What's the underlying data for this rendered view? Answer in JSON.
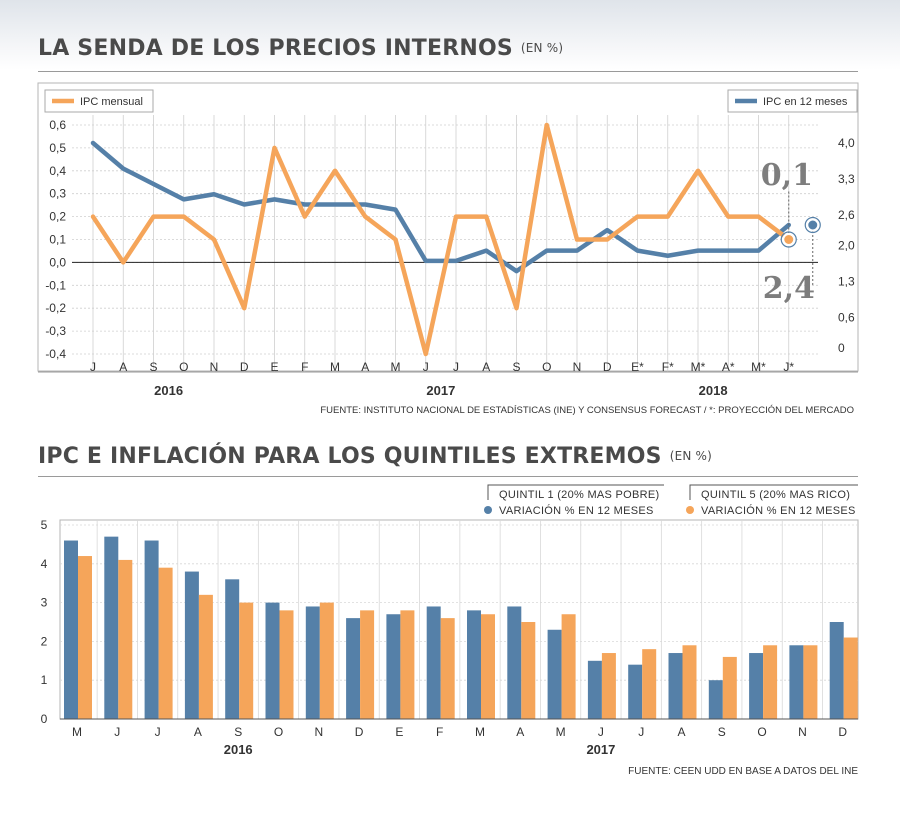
{
  "chart1": {
    "title": "LA SENDA DE LOS PRECIOS INTERNOS",
    "unit": "(EN %)",
    "source": "FUENTE: INSTITUTO NACIONAL DE ESTADÍSTICAS (INE) Y CONSENSUS FORECAST / *: PROYECCIÓN DEL MERCADO",
    "callout_top": "0,1",
    "callout_bottom": "2,4"
  },
  "chart2": {
    "title": "IPC E INFLACIÓN PARA LOS QUINTILES EXTREMOS",
    "unit": "(EN %)",
    "source": "FUENTE: CEEN UDD EN BASE A DATOS DEL INE",
    "legend1_line1": "QUINTIL 1 (20% MAS POBRE)",
    "legend1_line2": "VARIACIÓN % EN 12 MESES",
    "legend2_line1": "QUINTIL 5 (20% MAS RICO)",
    "legend2_line2": "VARIACIÓN % EN 12 MESES"
  },
  "chart_data": [
    {
      "type": "line",
      "title": "LA SENDA DE LOS PRECIOS INTERNOS",
      "categories": [
        "J",
        "A",
        "S",
        "O",
        "N",
        "D",
        "E",
        "F",
        "M",
        "A",
        "M",
        "J",
        "J",
        "A",
        "S",
        "O",
        "N",
        "D",
        "E*",
        "F*",
        "M*",
        "A*",
        "M*",
        "J*"
      ],
      "year_labels": [
        {
          "label": "2016",
          "at_index": 2.5
        },
        {
          "label": "2017",
          "at_index": 11.5
        },
        {
          "label": "2018",
          "at_index": 20.5
        }
      ],
      "y_left": {
        "ticks": [
          "0,6",
          "0,5",
          "0,4",
          "0,3",
          "0,2",
          "0,1",
          "0,0",
          "-0,1",
          "-0,2",
          "-0,3",
          "-0,4"
        ],
        "ylim": [
          -0.4,
          0.6
        ]
      },
      "y_right": {
        "ticks": [
          "4,0",
          "3,3",
          "2,6",
          "2,0",
          "1,3",
          "0,6",
          "0"
        ],
        "values": [
          4.0,
          3.3,
          2.6,
          2.0,
          1.3,
          0.6,
          0
        ],
        "ylim": [
          0,
          4.0
        ]
      },
      "series": [
        {
          "name": "IPC mensual",
          "axis": "left",
          "color": "#f5a55a",
          "values": [
            0.2,
            0.0,
            0.2,
            0.2,
            0.1,
            -0.2,
            0.5,
            0.2,
            0.4,
            0.2,
            0.1,
            -0.4,
            0.2,
            0.2,
            -0.2,
            0.6,
            0.1,
            0.1,
            0.2,
            0.2,
            0.4,
            0.2,
            0.2,
            0.1
          ]
        },
        {
          "name": "IPC en 12 meses",
          "axis": "right",
          "color": "#5580a8",
          "values": [
            4.0,
            3.5,
            3.2,
            2.9,
            3.0,
            2.8,
            2.9,
            2.8,
            2.8,
            2.8,
            2.7,
            1.7,
            1.7,
            1.9,
            1.5,
            1.9,
            1.9,
            2.3,
            1.9,
            1.8,
            1.9,
            1.9,
            1.9,
            2.4
          ]
        }
      ],
      "callouts": [
        {
          "series": "IPC mensual",
          "index": 23,
          "text": "0,1"
        },
        {
          "series": "IPC en 12 meses",
          "index": 23,
          "text": "2,4"
        }
      ],
      "zero_line": true,
      "grid": true
    },
    {
      "type": "bar",
      "title": "IPC E INFLACIÓN PARA LOS QUINTILES EXTREMOS",
      "categories": [
        "M",
        "J",
        "J",
        "A",
        "S",
        "O",
        "N",
        "D",
        "E",
        "F",
        "M",
        "A",
        "M",
        "J",
        "J",
        "A",
        "S",
        "O",
        "N",
        "D"
      ],
      "year_labels": [
        {
          "label": "2016",
          "at_index": 4
        },
        {
          "label": "2017",
          "at_index": 13
        }
      ],
      "y_ticks": [
        "0",
        "1",
        "2",
        "3",
        "4",
        "5"
      ],
      "ylim": [
        0,
        5
      ],
      "series": [
        {
          "name": "QUINTIL 1 (20% MAS POBRE) VARIACIÓN % EN 12 MESES",
          "color": "#5580a8",
          "values": [
            4.6,
            4.7,
            4.6,
            3.8,
            3.6,
            3.0,
            2.9,
            2.6,
            2.7,
            2.9,
            2.8,
            2.9,
            2.3,
            1.5,
            1.4,
            1.7,
            1.0,
            1.7,
            1.9,
            2.5
          ]
        },
        {
          "name": "QUINTIL 5 (20% MAS RICO) VARIACIÓN % EN 12 MESES",
          "color": "#f5a55a",
          "values": [
            4.2,
            4.1,
            3.9,
            3.2,
            3.0,
            2.8,
            3.0,
            2.8,
            2.8,
            2.6,
            2.7,
            2.5,
            2.7,
            1.7,
            1.8,
            1.9,
            1.6,
            1.9,
            1.9,
            2.1
          ]
        }
      ],
      "grid": true
    }
  ]
}
